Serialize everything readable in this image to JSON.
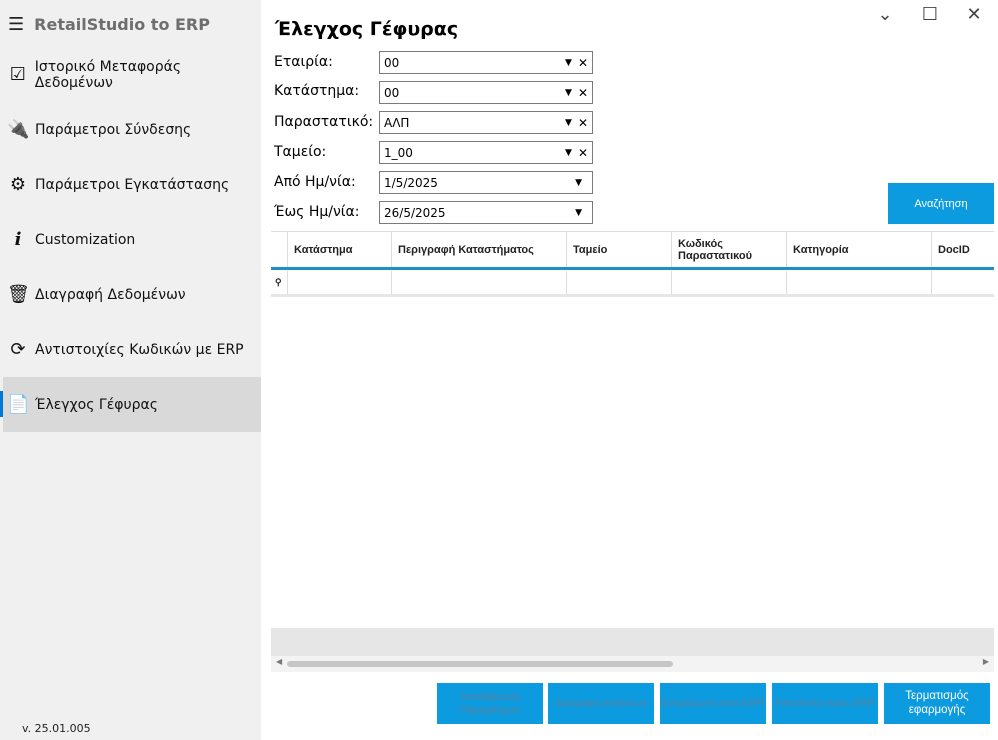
{
  "app": {
    "title": "RetailStudio to ERP",
    "version": "v. 25.01.005"
  },
  "sidebar": {
    "items": [
      {
        "label": "Ιστορικό Μεταφοράς Δεδομένων",
        "icon": "checklist-icon"
      },
      {
        "label": "Παράμετροι Σύνδεσης",
        "icon": "plug-icon"
      },
      {
        "label": "Παράμετροι Εγκατάστασης",
        "icon": "gears-icon"
      },
      {
        "label": "Customization",
        "icon": "info-icon"
      },
      {
        "label": "Διαγραφή Δεδομένων",
        "icon": "trash-icon"
      },
      {
        "label": "Αντιστοιχίες Κωδικών με ERP",
        "icon": "refresh-icon"
      },
      {
        "label": "Έλεγχος Γέφυρας",
        "icon": "documents-icon",
        "active": true
      }
    ]
  },
  "main": {
    "title": "Έλεγχος Γέφυρας",
    "filters": [
      {
        "label": "Εταιρία:",
        "value": "00"
      },
      {
        "label": "Κατάστημα:",
        "value": "00"
      },
      {
        "label": "Παραστατικό:",
        "value": "ΑΛΠ"
      },
      {
        "label": "Ταμείο:",
        "value": "1_00"
      },
      {
        "label": "Από Ημ/νία:",
        "value": "1/5/2025"
      },
      {
        "label": "Έως Ημ/νία:",
        "value": "26/5/2025"
      }
    ],
    "search_label": "Αναζήτηση",
    "columns": [
      "Κατάστημα",
      "Περιγραφή Καταστήματος",
      "Ταμείο",
      "Κωδικός Παραστατικού",
      "Κατηγορία",
      "DocID"
    ],
    "buttons": [
      {
        "label": "Αποθήκευση Παραμέτρων",
        "enabled": false
      },
      {
        "label": "Διαγραφή κινήσεων",
        "enabled": false
      },
      {
        "label": "Ενημέρωση από ERP",
        "enabled": false
      },
      {
        "label": "Αποστολή προς ERP",
        "enabled": false
      },
      {
        "label": "Τερματισμός εφαρμογής",
        "enabled": true
      }
    ]
  },
  "colors": {
    "accent": "#0d9be0",
    "header_line": "#1b8fc9"
  }
}
